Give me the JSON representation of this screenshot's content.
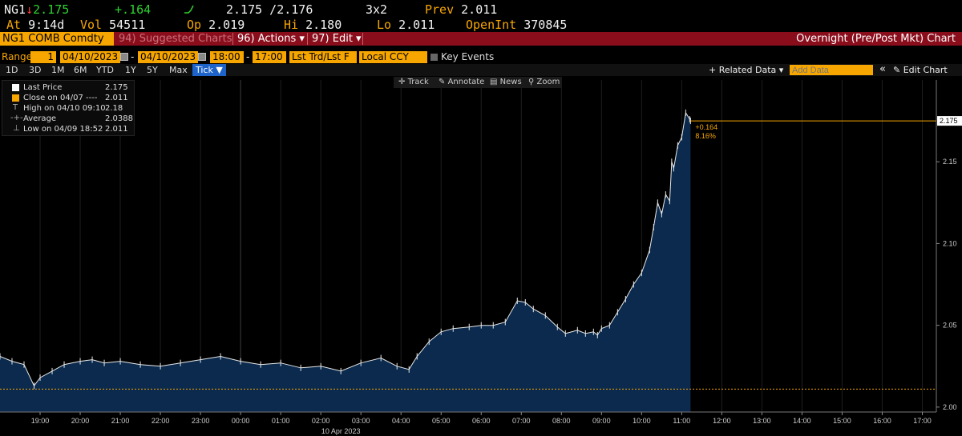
{
  "quote": {
    "ticker": "NG1",
    "arrow": "↓",
    "last": "2.175",
    "change": "+.164",
    "bid_ask": "2.175 /2.176",
    "size": "3x2",
    "prev_label": "Prev",
    "prev": "2.011",
    "at_label": "At",
    "at_time": "9:14d",
    "vol_label": "Vol",
    "vol": "54511",
    "open_label": "Op",
    "open": "2.019",
    "hi_label": "Hi",
    "hi": "2.180",
    "lo_label": "Lo",
    "lo": "2.011",
    "oi_label": "OpenInt",
    "oi": "370845"
  },
  "menubar": {
    "security": "NG1 COMB Comdty",
    "suggested": "94) Suggested Charts",
    "actions": "96) Actions ▾",
    "edit": "97) Edit ▾",
    "chart_title": "Overnight (Pre/Post Mkt) Chart"
  },
  "range": {
    "label": "Range",
    "num": "1",
    "start_date": "04/10/2023",
    "dash1": "-",
    "end_date": "04/10/2023",
    "start_time": "18:00",
    "dash2": "-",
    "end_time": "17:00",
    "price_type": "Lst Trd/Lst F",
    "currency": "Local CCY",
    "key_events": "Key Events"
  },
  "periods": [
    "1D",
    "3D",
    "1M",
    "6M",
    "YTD",
    "1Y",
    "5Y",
    "Max"
  ],
  "tick_label": "Tick ▼",
  "related_data": "+ Related Data ▾",
  "add_data_placeholder": "Add Data",
  "collapse": "«",
  "edit_chart": "✎ Edit Chart",
  "tools": {
    "track": "Track",
    "annotate": "Annotate",
    "news": "News",
    "zoom": "Zoom"
  },
  "legend": [
    {
      "label": "Last Price",
      "value": "2.175"
    },
    {
      "label": "Close on 04/07 ----",
      "value": "2.011"
    },
    {
      "label": "High on 04/10 09:10",
      "value": "2.18"
    },
    {
      "label": "Average",
      "value": "2.0388"
    },
    {
      "label": "Low on 04/09 18:52",
      "value": "2.011"
    }
  ],
  "annotation": {
    "change": "+0.164",
    "pct": "8.16%"
  },
  "last_price_tag": "2.175",
  "colors": {
    "amber": "#f7a600",
    "menu_red": "#8a0d1c",
    "area_fill": "#0b2a4d",
    "line": "#e8e8e8",
    "tick_blue": "#1e63c9",
    "up": "#2fd12f",
    "down": "#ff3b3b"
  },
  "chart_data": {
    "type": "area",
    "x_label": "10 Apr 2023",
    "x_ticks": [
      "19:00",
      "20:00",
      "21:00",
      "22:00",
      "23:00",
      "00:00",
      "01:00",
      "02:00",
      "03:00",
      "04:00",
      "05:00",
      "06:00",
      "07:00",
      "08:00",
      "09:00",
      "10:00",
      "11:00",
      "12:00",
      "13:00",
      "14:00",
      "15:00",
      "16:00",
      "17:00"
    ],
    "y_ticks": [
      "2.00",
      "2.05",
      "2.10",
      "2.15"
    ],
    "y_range": [
      1.997,
      2.2
    ],
    "prev_close": 2.011,
    "series": [
      {
        "x": [
          18.0,
          18.3,
          18.6,
          18.85,
          19.0,
          19.3,
          19.6,
          20.0,
          20.3,
          20.6,
          21.0,
          21.5,
          22.0,
          22.5,
          23.0,
          23.5,
          24.0,
          24.5,
          25.0,
          25.5,
          26.0,
          26.5,
          27.0,
          27.5,
          27.9,
          28.2,
          28.4,
          28.7,
          29.0,
          29.3,
          29.7,
          30.0,
          30.3,
          30.6,
          30.9,
          31.1,
          31.3,
          31.6,
          31.9,
          32.1,
          32.4,
          32.6,
          32.8,
          32.9,
          33.0,
          33.2,
          33.4,
          33.6,
          33.8,
          34.0,
          34.2,
          34.3,
          34.4,
          34.5,
          34.6,
          34.7,
          34.75,
          34.8,
          34.9,
          35.0,
          35.1,
          35.2,
          35.22
        ],
        "y": [
          2.031,
          2.028,
          2.026,
          2.013,
          2.018,
          2.022,
          2.026,
          2.028,
          2.029,
          2.027,
          2.028,
          2.026,
          2.025,
          2.027,
          2.029,
          2.031,
          2.028,
          2.026,
          2.027,
          2.024,
          2.025,
          2.022,
          2.027,
          2.03,
          2.025,
          2.023,
          2.031,
          2.04,
          2.046,
          2.048,
          2.049,
          2.05,
          2.05,
          2.052,
          2.065,
          2.064,
          2.06,
          2.056,
          2.049,
          2.045,
          2.047,
          2.045,
          2.046,
          2.044,
          2.048,
          2.05,
          2.058,
          2.066,
          2.075,
          2.082,
          2.096,
          2.11,
          2.125,
          2.118,
          2.13,
          2.126,
          2.15,
          2.146,
          2.16,
          2.165,
          2.18,
          2.176,
          2.175
        ]
      }
    ],
    "grid": "vertical hour lines",
    "legend_position": "top-left"
  }
}
